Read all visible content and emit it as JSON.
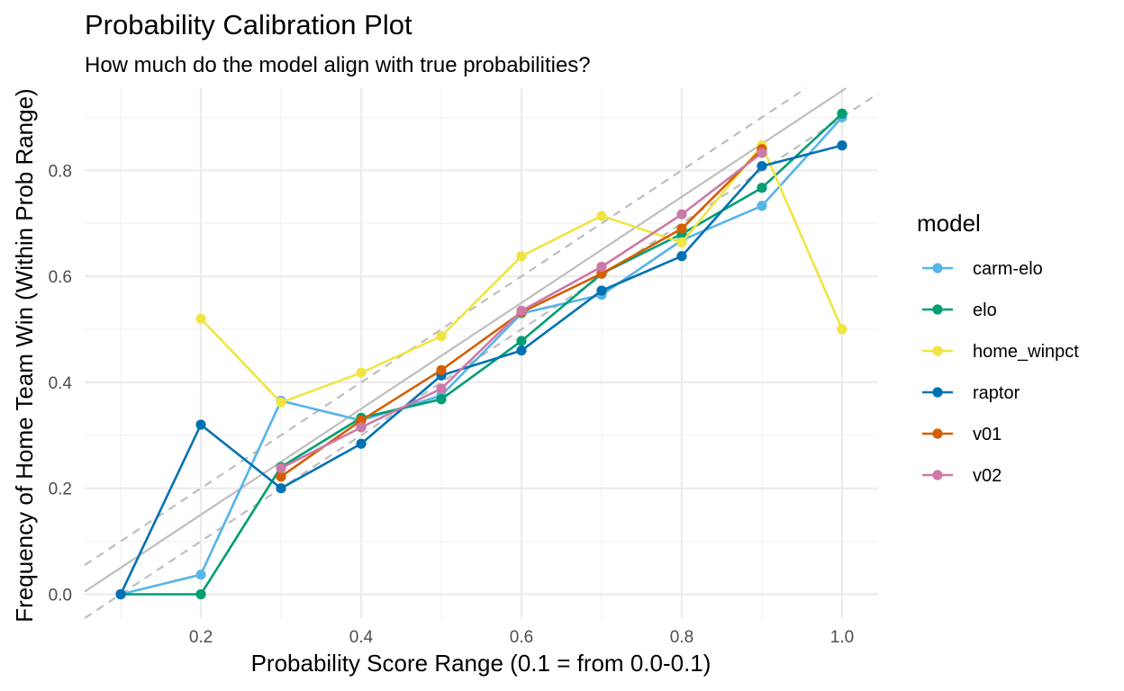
{
  "chart_data": {
    "type": "line",
    "title": "Probability Calibration Plot",
    "subtitle": "How much do the model align with true probabilities?",
    "xlabel": "Probability Score Range (0.1 = from 0.0-0.1)",
    "ylabel": "Frequency of Home Team Win (Within Prob Range)",
    "xlim": [
      0.055,
      1.045
    ],
    "ylim": [
      -0.045,
      0.955
    ],
    "x_ticks": [
      0.2,
      0.4,
      0.6,
      0.8,
      1.0
    ],
    "x_tick_labels": [
      "0.2",
      "0.4",
      "0.6",
      "0.8",
      "1.0"
    ],
    "y_ticks": [
      0.0,
      0.2,
      0.4,
      0.6,
      0.8
    ],
    "y_tick_labels": [
      "0.0",
      "0.2",
      "0.4",
      "0.6",
      "0.8"
    ],
    "grid": true,
    "legend": {
      "title": "model",
      "position": "right"
    },
    "reference_lines": [
      {
        "slope": 1,
        "intercept": -0.05,
        "style": "solid",
        "color": "#bebebe"
      },
      {
        "slope": 1,
        "intercept": 0.0,
        "style": "dashed",
        "color": "#bebebe"
      },
      {
        "slope": 1,
        "intercept": -0.1,
        "style": "dashed",
        "color": "#bebebe"
      }
    ],
    "series": [
      {
        "name": "carm-elo",
        "color": "#56B4E9",
        "x": [
          0.1,
          0.2,
          0.3,
          0.4,
          0.5,
          0.6,
          0.7,
          0.8,
          0.9,
          1.0
        ],
        "values": [
          0.0,
          0.037,
          0.365,
          0.328,
          0.375,
          0.53,
          0.565,
          0.668,
          0.733,
          0.9
        ]
      },
      {
        "name": "elo",
        "color": "#009E73",
        "x": [
          0.1,
          0.2,
          0.3,
          0.4,
          0.5,
          0.6,
          0.7,
          0.8,
          0.9,
          1.0
        ],
        "values": [
          0.0,
          0.0,
          0.24,
          0.333,
          0.368,
          0.478,
          0.605,
          0.68,
          0.767,
          0.907
        ]
      },
      {
        "name": "home_winpct",
        "color": "#F0E442",
        "x": [
          0.2,
          0.3,
          0.4,
          0.5,
          0.6,
          0.7,
          0.8,
          0.9,
          1.0
        ],
        "values": [
          0.52,
          0.362,
          0.418,
          0.487,
          0.638,
          0.714,
          0.664,
          0.847,
          0.5
        ]
      },
      {
        "name": "raptor",
        "color": "#0072B2",
        "x": [
          0.1,
          0.2,
          0.3,
          0.4,
          0.5,
          0.6,
          0.7,
          0.8,
          0.9,
          1.0
        ],
        "values": [
          0.0,
          0.32,
          0.2,
          0.284,
          0.413,
          0.46,
          0.573,
          0.638,
          0.808,
          0.847
        ]
      },
      {
        "name": "v01",
        "color": "#D55E00",
        "x": [
          0.3,
          0.4,
          0.5,
          0.6,
          0.7,
          0.8,
          0.9
        ],
        "values": [
          0.222,
          0.328,
          0.423,
          0.532,
          0.605,
          0.69,
          0.84
        ]
      },
      {
        "name": "v02",
        "color": "#CC79A7",
        "x": [
          0.3,
          0.4,
          0.5,
          0.6,
          0.7,
          0.8,
          0.9
        ],
        "values": [
          0.238,
          0.315,
          0.388,
          0.535,
          0.618,
          0.717,
          0.833
        ]
      }
    ]
  }
}
